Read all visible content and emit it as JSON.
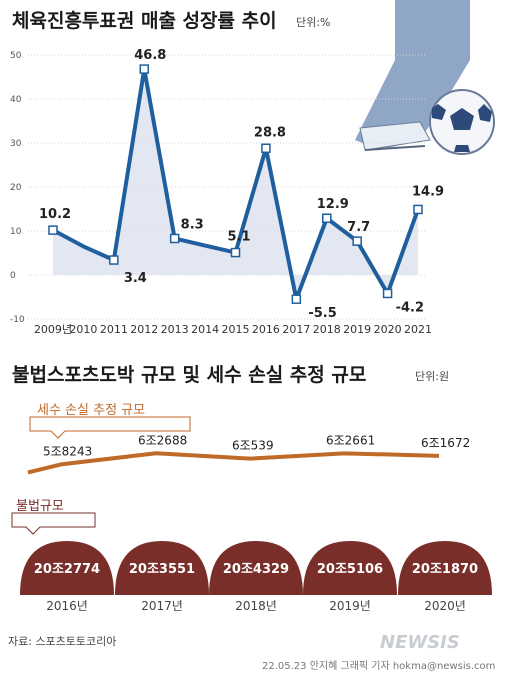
{
  "chart_data": [
    {
      "type": "line",
      "title": "체육진흥투표권 매출 성장률 추이",
      "unit": "단위:%",
      "x": [
        "2009년",
        "2010",
        "2011",
        "2012",
        "2013",
        "2014",
        "2015",
        "2016",
        "2017",
        "2018",
        "2019",
        "2020",
        "2021"
      ],
      "values": [
        10.2,
        6.5,
        3.4,
        46.8,
        8.3,
        6.7,
        5.1,
        28.8,
        -5.5,
        12.9,
        7.7,
        -4.2,
        14.9
      ],
      "labels": [
        "10.2",
        null,
        "3.4",
        "46.8",
        "8.3",
        null,
        "5.1",
        "28.8",
        "-5.5",
        "12.9",
        "7.7",
        "-4.2",
        "14.9"
      ],
      "yticks": [
        "50",
        "40",
        "30",
        "20",
        "10",
        "0",
        "-10"
      ],
      "ylim": [
        -10,
        50
      ],
      "color": "#1f5f9e"
    },
    {
      "type": "line",
      "title": "불법스포츠도박 규모 및 세수 손실 추정 규모",
      "unit": "단위:원",
      "categories": [
        "2016년",
        "2017년",
        "2018년",
        "2019년",
        "2020년"
      ],
      "series": [
        {
          "name": "세수 손실 추정 규모",
          "labels": [
            "5조8243",
            "6조2688",
            "6조539",
            "6조2661",
            "6조1672"
          ],
          "values": [
            58243,
            62688,
            60539,
            62661,
            61672
          ],
          "color": "#c06a28"
        },
        {
          "name": "불법규모",
          "labels": [
            "20조2774",
            "20조3551",
            "20조4329",
            "20조5106",
            "20조1870"
          ],
          "values": [
            202774,
            203551,
            204329,
            205106,
            201870
          ],
          "color": "#7a2e2a"
        }
      ]
    }
  ],
  "footer": {
    "source": "자료: 스포츠토토코리아",
    "credit": "22.05.23  안지혜  그래픽  기자  hokma@newsis.com",
    "logo": "NEWSIS"
  },
  "colors": {
    "line1": "#1f5f9e",
    "fill1": "#dde3ee",
    "tax": "#c06a28",
    "illegal": "#7a2e2a"
  }
}
